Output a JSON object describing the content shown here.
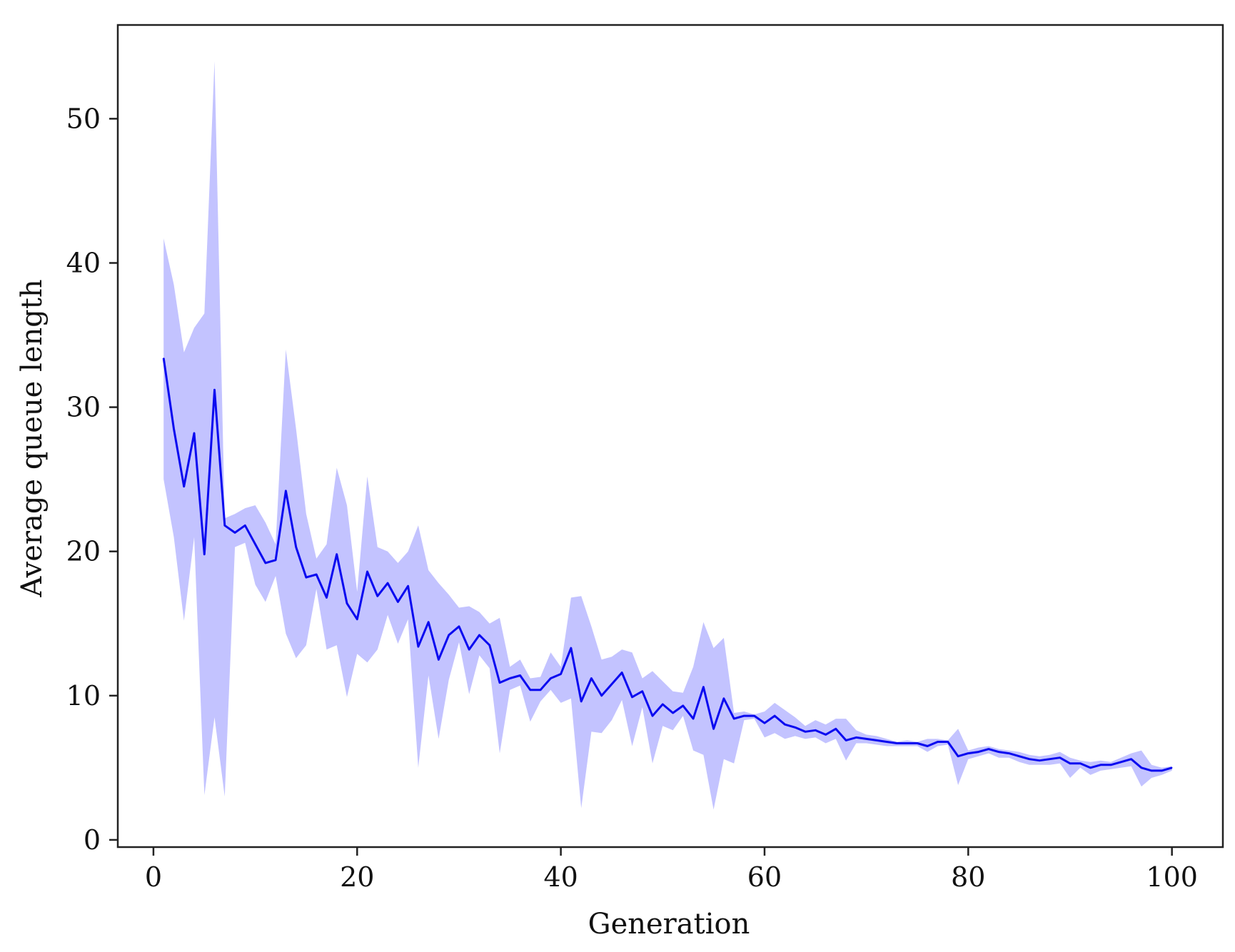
{
  "chart_data": {
    "type": "line",
    "title": "",
    "xlabel": "Generation",
    "ylabel": "Average queue length",
    "xlim": [
      -3.5,
      105
    ],
    "ylim": [
      -0.5,
      56.5
    ],
    "xticks": [
      0,
      20,
      40,
      60,
      80,
      100
    ],
    "yticks": [
      0,
      10,
      20,
      30,
      40,
      50
    ],
    "grid": false,
    "legend": "none",
    "colors": {
      "line": "#0a0af0",
      "band": "#c3c3ff",
      "axes": "#222222"
    },
    "x": [
      1,
      2,
      3,
      4,
      5,
      6,
      7,
      8,
      9,
      10,
      11,
      12,
      13,
      14,
      15,
      16,
      17,
      18,
      19,
      20,
      21,
      22,
      23,
      24,
      25,
      26,
      27,
      28,
      29,
      30,
      31,
      32,
      33,
      34,
      35,
      36,
      37,
      38,
      39,
      40,
      41,
      42,
      43,
      44,
      45,
      46,
      47,
      48,
      49,
      50,
      51,
      52,
      53,
      54,
      55,
      56,
      57,
      58,
      59,
      60,
      61,
      62,
      63,
      64,
      65,
      66,
      67,
      68,
      69,
      70,
      71,
      72,
      73,
      74,
      75,
      76,
      77,
      78,
      79,
      80,
      81,
      82,
      83,
      84,
      85,
      86,
      87,
      88,
      89,
      90,
      91,
      92,
      93,
      94,
      95,
      96,
      97,
      98,
      99,
      100
    ],
    "series": [
      {
        "type": "line",
        "values": [
          33.4,
          28.5,
          24.5,
          28.2,
          19.8,
          31.2,
          21.8,
          21.3,
          21.8,
          20.5,
          19.2,
          19.4,
          24.2,
          20.3,
          18.2,
          18.4,
          16.8,
          19.8,
          16.4,
          15.3,
          18.6,
          16.9,
          17.8,
          16.5,
          17.6,
          13.4,
          15.1,
          12.5,
          14.2,
          14.8,
          13.2,
          14.2,
          13.5,
          10.9,
          11.2,
          11.4,
          10.4,
          10.4,
          11.2,
          11.5,
          13.3,
          9.6,
          11.2,
          10.0,
          10.8,
          11.6,
          9.9,
          10.3,
          8.6,
          9.4,
          8.8,
          9.3,
          8.4,
          10.6,
          7.7,
          9.8,
          8.4,
          8.6,
          8.6,
          8.1,
          8.6,
          8.0,
          7.8,
          7.5,
          7.6,
          7.3,
          7.7,
          6.9,
          7.1,
          7.0,
          6.9,
          6.8,
          6.7,
          6.7,
          6.7,
          6.5,
          6.8,
          6.8,
          5.8,
          6.0,
          6.1,
          6.3,
          6.1,
          6.0,
          5.8,
          5.6,
          5.5,
          5.6,
          5.7,
          5.3,
          5.3,
          5.0,
          5.2,
          5.2,
          5.4,
          5.6,
          5.0,
          4.8,
          4.8,
          5.0
        ]
      },
      {
        "type": "band_upper",
        "values": [
          41.7,
          38.5,
          33.8,
          35.5,
          36.5,
          54.0,
          22.3,
          22.6,
          23.0,
          23.2,
          22.0,
          20.5,
          34.0,
          28.5,
          22.6,
          19.5,
          20.5,
          25.8,
          23.2,
          17.2,
          25.2,
          20.3,
          20.0,
          19.2,
          20.0,
          21.8,
          18.7,
          17.8,
          17.0,
          16.1,
          16.2,
          15.8,
          15.0,
          15.4,
          12.0,
          12.5,
          11.2,
          11.3,
          13.0,
          12.0,
          16.8,
          16.9,
          14.8,
          12.5,
          12.7,
          13.2,
          13.0,
          11.2,
          11.7,
          11.0,
          10.3,
          10.2,
          12.0,
          15.1,
          13.3,
          14.0,
          8.8,
          8.9,
          8.7,
          8.9,
          9.5,
          9.0,
          8.5,
          7.9,
          8.3,
          8.0,
          8.4,
          8.4,
          7.6,
          7.3,
          7.2,
          7.0,
          6.8,
          6.9,
          6.8,
          7.0,
          7.0,
          6.9,
          7.7,
          6.2,
          6.4,
          6.5,
          6.3,
          6.2,
          6.1,
          5.9,
          5.8,
          5.9,
          6.1,
          5.7,
          5.5,
          5.4,
          5.5,
          5.4,
          5.7,
          6.0,
          6.2,
          5.2,
          5.0,
          5.1
        ]
      },
      {
        "type": "band_lower",
        "values": [
          25.0,
          21.0,
          15.2,
          21.0,
          3.1,
          8.5,
          3.0,
          20.3,
          20.6,
          17.7,
          16.5,
          18.3,
          14.3,
          12.6,
          13.5,
          17.4,
          13.2,
          13.5,
          9.9,
          12.9,
          12.3,
          13.2,
          15.6,
          13.6,
          15.3,
          5.0,
          11.4,
          7.0,
          11.1,
          13.7,
          10.1,
          12.8,
          11.9,
          6.0,
          10.4,
          10.7,
          8.2,
          9.6,
          10.4,
          9.5,
          9.8,
          2.2,
          7.5,
          7.4,
          8.3,
          9.7,
          6.5,
          9.2,
          5.3,
          7.9,
          7.6,
          8.6,
          6.2,
          5.9,
          2.1,
          5.6,
          5.3,
          8.3,
          8.4,
          7.1,
          7.4,
          7.0,
          7.2,
          7.0,
          7.1,
          6.7,
          7.0,
          5.5,
          6.7,
          6.7,
          6.6,
          6.5,
          6.5,
          6.5,
          6.5,
          6.1,
          6.5,
          6.6,
          3.8,
          5.6,
          5.8,
          6.0,
          5.7,
          5.7,
          5.4,
          5.2,
          5.2,
          5.2,
          5.3,
          4.3,
          5.0,
          4.5,
          4.8,
          4.9,
          5.0,
          5.1,
          3.7,
          4.3,
          4.5,
          4.8
        ]
      }
    ]
  }
}
